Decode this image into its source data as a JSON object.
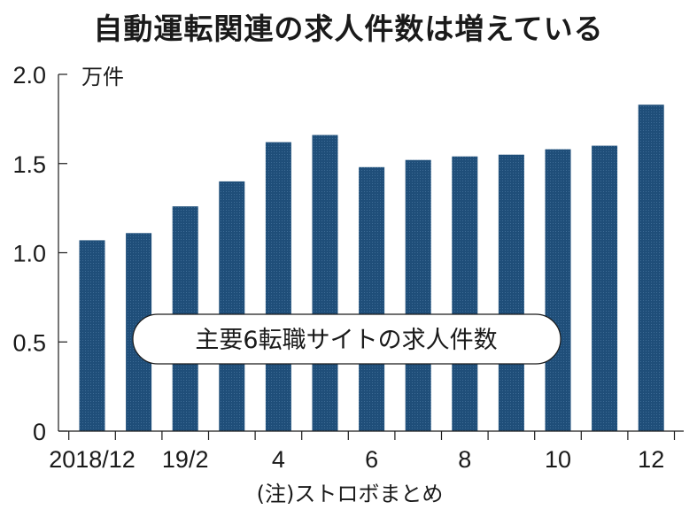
{
  "chart_data": {
    "type": "bar",
    "title": "自動運転関連の求人件数は増えている",
    "unit_label": "万件",
    "legend_label": "主要6転職サイトの求人件数",
    "note": "(注)ストロボまとめ",
    "categories": [
      "2018/12",
      "2019/1",
      "2019/2",
      "2019/3",
      "2019/4",
      "2019/5",
      "2019/6",
      "2019/7",
      "2019/8",
      "2019/9",
      "2019/10",
      "2019/11",
      "2019/12"
    ],
    "x_tick_labels": [
      "2018/12",
      "",
      "19/2",
      "",
      "4",
      "",
      "6",
      "",
      "8",
      "",
      "10",
      "",
      "12"
    ],
    "values": [
      1.07,
      1.11,
      1.26,
      1.4,
      1.62,
      1.66,
      1.48,
      1.52,
      1.54,
      1.55,
      1.58,
      1.6,
      1.83
    ],
    "y_ticks": [
      "0",
      "0.5",
      "1.0",
      "1.5",
      "2.0"
    ],
    "ylim": [
      0,
      2.0
    ],
    "bar_color": "#1f4e79",
    "grid": false
  }
}
